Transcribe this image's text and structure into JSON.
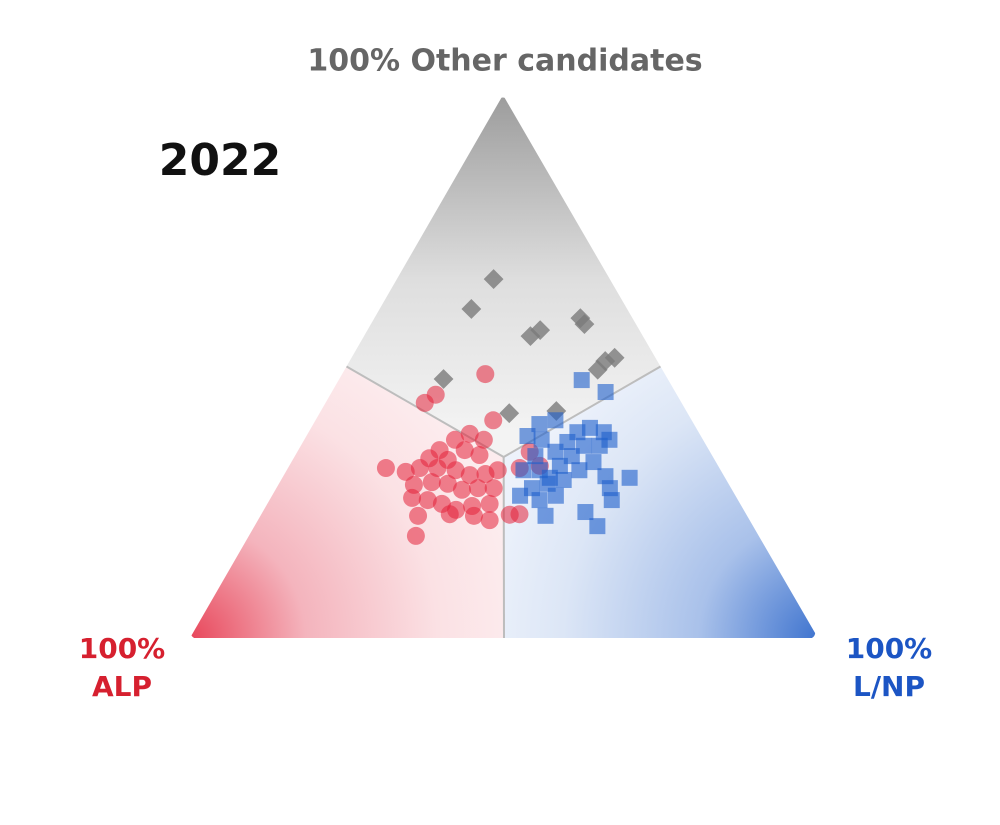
{
  "chart_data": {
    "type": "ternary",
    "title": "2022",
    "axes": [
      {
        "lines": [
          "100%",
          "ALP"
        ],
        "color": "#d6202f"
      },
      {
        "lines": [
          "100%",
          "L/NP"
        ],
        "color": "#1c55c4"
      },
      {
        "lines": [
          "100% Other candidates"
        ],
        "color": "#666666"
      }
    ],
    "series": [
      {
        "marker": "diamond",
        "color": "#7a7a7a",
        "points": [
          [
            18.5,
            15.4,
            66.1
          ],
          [
            24.8,
            14.6,
            60.6
          ],
          [
            8.3,
            32.8,
            58.9
          ],
          [
            8.2,
            34.0,
            57.8
          ],
          [
            15.8,
            27.5,
            56.7
          ],
          [
            17.9,
            26.5,
            55.6
          ],
          [
            6.5,
            41.9,
            51.6
          ],
          [
            8.3,
            40.7,
            51.0
          ],
          [
            10.3,
            40.3,
            49.4
          ],
          [
            35.7,
            16.6,
            47.7
          ],
          [
            20.7,
            37.5,
            41.8
          ],
          [
            28.4,
            30.2,
            41.4
          ]
        ]
      },
      {
        "marker": "circle",
        "color": "#e3233a",
        "points": [
          [
            28.6,
            22.8,
            48.6
          ],
          [
            38.4,
            16.8,
            44.8
          ],
          [
            40.9,
            15.8,
            43.3
          ],
          [
            31.6,
            28.3,
            40.1
          ],
          [
            36.6,
            25.8,
            37.6
          ],
          [
            39.5,
            24.0,
            36.5
          ],
          [
            34.9,
            28.6,
            36.5
          ],
          [
            42.9,
            22.5,
            34.6
          ],
          [
            45.3,
            21.6,
            33.1
          ],
          [
            42.5,
            24.7,
            32.8
          ],
          [
            38.9,
            26.5,
            34.6
          ],
          [
            37.0,
            29.3,
            33.7
          ],
          [
            53.1,
            15.6,
            31.3
          ],
          [
            50.3,
            19.1,
            30.6
          ],
          [
            47.7,
            21.0,
            31.3
          ],
          [
            44.9,
            23.8,
            31.3
          ],
          [
            42.2,
            26.9,
            30.9
          ],
          [
            40.4,
            29.6,
            30.0
          ],
          [
            37.8,
            32.0,
            30.2
          ],
          [
            35.5,
            33.6,
            30.9
          ],
          [
            50.2,
            21.6,
            28.2
          ],
          [
            47.1,
            24.2,
            28.7
          ],
          [
            44.7,
            26.9,
            28.4
          ],
          [
            43.0,
            29.7,
            27.3
          ],
          [
            40.3,
            32.1,
            27.6
          ],
          [
            37.8,
            34.6,
            27.6
          ],
          [
            31.8,
            36.9,
            31.3
          ],
          [
            28.7,
            37.0,
            34.3
          ],
          [
            28.4,
            39.9,
            31.7
          ],
          [
            51.7,
            22.5,
            25.8
          ],
          [
            49.4,
            25.2,
            25.4
          ],
          [
            47.5,
            27.8,
            24.7
          ],
          [
            45.8,
            30.6,
            23.6
          ],
          [
            42.9,
            32.8,
            24.3
          ],
          [
            39.9,
            35.4,
            24.7
          ],
          [
            52.4,
            25.1,
            22.5
          ],
          [
            47.2,
            30.0,
            22.8
          ],
          [
            43.5,
            34.0,
            22.5
          ],
          [
            41.4,
            36.9,
            21.7
          ],
          [
            37.7,
            39.6,
            22.7
          ],
          [
            36.1,
            41.1,
            22.8
          ],
          [
            54.6,
            26.6,
            18.8
          ]
        ]
      },
      {
        "marker": "square",
        "color": "#1e5fcb",
        "points": [
          [
            13.8,
            38.7,
            47.5
          ],
          [
            11.1,
            43.6,
            45.3
          ],
          [
            24.6,
            36.0,
            39.4
          ],
          [
            21.7,
            38.2,
            40.1
          ],
          [
            19.3,
            42.8,
            37.9
          ],
          [
            16.9,
            44.4,
            38.7
          ],
          [
            15.1,
            47.0,
            37.9
          ],
          [
            21.8,
            42.1,
            36.1
          ],
          [
            19.5,
            45.1,
            35.4
          ],
          [
            17.0,
            47.6,
            35.4
          ],
          [
            14.9,
            48.6,
            36.5
          ],
          [
            27.6,
            35.2,
            37.2
          ],
          [
            25.7,
            37.8,
            36.5
          ],
          [
            24.6,
            41.1,
            34.3
          ],
          [
            22.4,
            44.1,
            33.5
          ],
          [
            19.5,
            48.1,
            32.4
          ],
          [
            31.4,
            37.7,
            30.9
          ],
          [
            28.8,
            40.3,
            30.9
          ],
          [
            25.2,
            43.1,
            31.7
          ],
          [
            22.5,
            46.6,
            30.9
          ],
          [
            18.9,
            51.3,
            29.8
          ],
          [
            15.2,
            55.3,
            29.5
          ],
          [
            31.7,
            40.7,
            27.6
          ],
          [
            28.8,
            42.8,
            28.4
          ],
          [
            25.9,
            45.0,
            29.1
          ],
          [
            31.6,
            43.0,
            25.4
          ],
          [
            28.6,
            45.2,
            26.2
          ],
          [
            19.3,
            53.1,
            27.6
          ],
          [
            20.1,
            54.5,
            25.4
          ],
          [
            34.3,
            39.5,
            26.2
          ],
          [
            32.1,
            45.4,
            22.5
          ],
          [
            25.4,
            51.4,
            23.2
          ],
          [
            24.8,
            54.6,
            20.6
          ],
          [
            28.2,
            38.3,
            33.5
          ],
          [
            27.9,
            42.6,
            29.5
          ]
        ]
      }
    ]
  }
}
